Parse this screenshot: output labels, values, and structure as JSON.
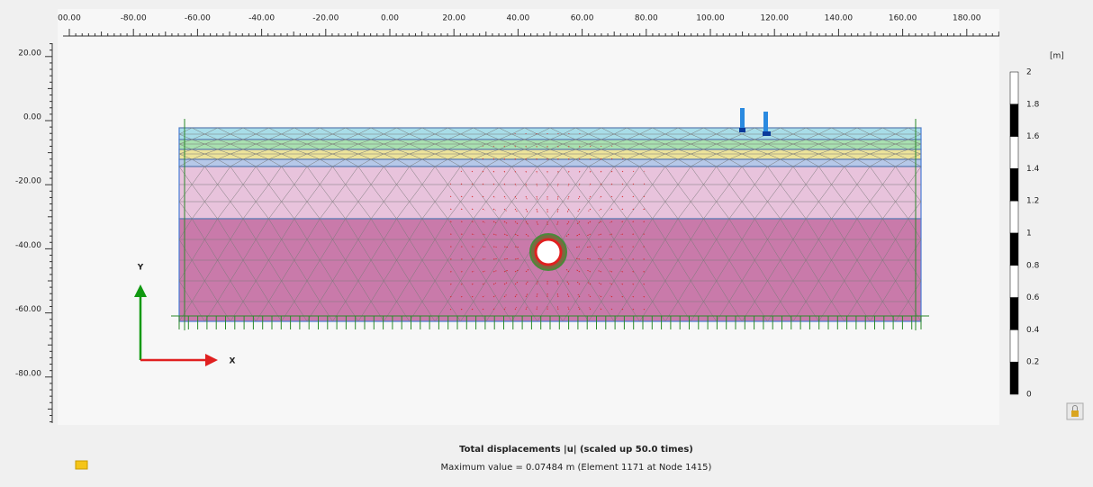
{
  "ruler": {
    "x_labels": [
      "00.00",
      "-80.00",
      "-60.00",
      "-40.00",
      "-20.00",
      "0.00",
      "20.00",
      "40.00",
      "60.00",
      "80.00",
      "100.00",
      "120.00",
      "140.00",
      "160.00",
      "180.00"
    ],
    "y_labels": [
      "20.00",
      "0.00",
      "-20.00",
      "-40.00",
      "-60.00",
      "-80.00"
    ]
  },
  "axes": {
    "y": "Y",
    "x": "X"
  },
  "legend": {
    "unit": "[m]",
    "labels": [
      "2",
      "1.8",
      "1.6",
      "1.4",
      "1.2",
      "1",
      "0.8",
      "0.6",
      "0.4",
      "0.2",
      "0"
    ]
  },
  "caption": {
    "title": "Total displacements |u| (scaled up 50.0 times)",
    "subtitle": "Maximum value = 0.07484 m (Element 1171 at Node 1415)"
  }
}
